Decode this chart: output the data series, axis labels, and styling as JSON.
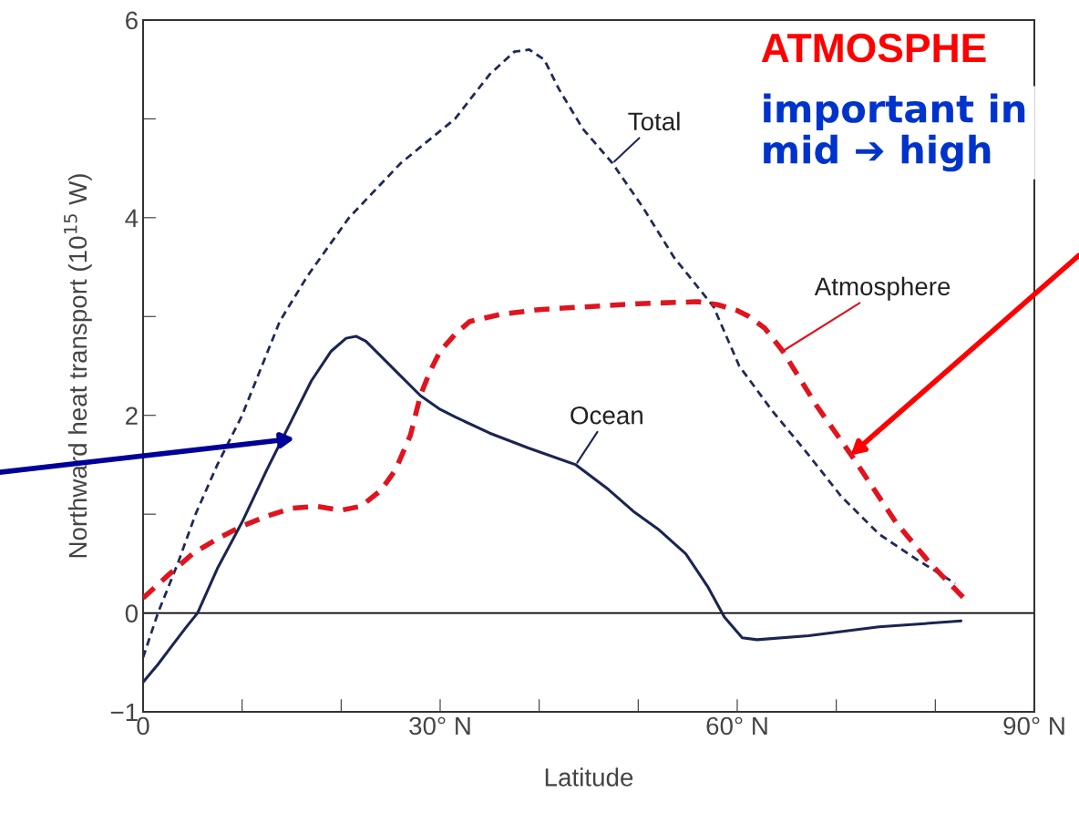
{
  "chart_data": {
    "type": "line",
    "xlabel": "Latitude",
    "ylabel": "Northward heat transport (10$^{15}$ W)",
    "xlim": [
      0,
      90
    ],
    "xticks": [
      0,
      {
        "value": 10,
        "label": null
      },
      {
        "value": 20,
        "label": null
      },
      {
        "value": 30,
        "label": "30° N"
      },
      {
        "value": 40,
        "label": null
      },
      {
        "value": 50,
        "label": null
      },
      {
        "value": 60,
        "label": "60° N"
      },
      {
        "value": 70,
        "label": null
      },
      {
        "value": 80,
        "label": null
      },
      {
        "value": 90,
        "label": "90° N"
      }
    ],
    "ylim": [
      -1,
      6
    ],
    "yticks": [
      {
        "value": -1,
        "label": "−1"
      },
      0,
      {
        "value": 1,
        "label": null
      },
      2,
      {
        "value": 3,
        "label": null
      },
      4,
      {
        "value": 5,
        "label": null
      },
      6
    ],
    "grid": false,
    "legend": false,
    "marker": "none",
    "series": [
      {
        "name": "Total",
        "color": "#1f2a55",
        "line_style": "dashed",
        "x": [
          0,
          1.5,
          3.5,
          5.3,
          7.5,
          10,
          12,
          13.8,
          16.6,
          20.8,
          26,
          31.5,
          35,
          37.5,
          39,
          40.5,
          42,
          44.4,
          47.4,
          50.5,
          53.6,
          57.6,
          60.2,
          63.5,
          67.2,
          70.5,
          74.3,
          78,
          82
        ],
        "values": [
          -0.45,
          0,
          0.5,
          1,
          1.5,
          2,
          2.5,
          2.95,
          3.41,
          4,
          4.55,
          5,
          5.45,
          5.68,
          5.7,
          5.6,
          5.3,
          4.9,
          4.55,
          4.1,
          3.6,
          3.1,
          2.5,
          2.05,
          1.6,
          1.18,
          0.8,
          0.55,
          0.3
        ]
      },
      {
        "name": "Atmosphere",
        "color": "#e0141e",
        "line_style": "dashed",
        "x": [
          0,
          2.5,
          5,
          7.5,
          10,
          12.5,
          15,
          17.5,
          20,
          22,
          24,
          25.5,
          27,
          28,
          29,
          30,
          31.5,
          33,
          36,
          40,
          45,
          50,
          56,
          58,
          60,
          61.2,
          62.8,
          64.6,
          68,
          71.5,
          73.5,
          76,
          79.5,
          82.8
        ],
        "values": [
          0.15,
          0.38,
          0.6,
          0.75,
          0.88,
          0.98,
          1.06,
          1.08,
          1.04,
          1.08,
          1.24,
          1.45,
          1.8,
          2.2,
          2.45,
          2.65,
          2.82,
          2.95,
          3.02,
          3.07,
          3.1,
          3.13,
          3.15,
          3.12,
          3.06,
          3.0,
          2.88,
          2.65,
          2.1,
          1.6,
          1.3,
          0.92,
          0.5,
          0.16
        ]
      },
      {
        "name": "Ocean",
        "color": "#1a2552",
        "line_style": "solid",
        "x": [
          0,
          1.5,
          3,
          4.3,
          5.5,
          7.5,
          10,
          12.5,
          15,
          17,
          19,
          20.5,
          21.5,
          22.5,
          24,
          26,
          28,
          30,
          31.6,
          35,
          38.9,
          43.7,
          47,
          49.5,
          52,
          54.8,
          57,
          58.7,
          60.5,
          62,
          67.2,
          74.3,
          82.6
        ],
        "values": [
          -0.7,
          -0.52,
          -0.32,
          -0.15,
          0,
          0.45,
          0.92,
          1.45,
          1.95,
          2.35,
          2.65,
          2.78,
          2.8,
          2.75,
          2.6,
          2.4,
          2.2,
          2.06,
          1.98,
          1.82,
          1.67,
          1.5,
          1.25,
          1.03,
          0.85,
          0.6,
          0.27,
          -0.04,
          -0.25,
          -0.27,
          -0.23,
          -0.14,
          -0.08
        ]
      }
    ],
    "ref_lines": [
      {
        "axis": "y",
        "value": 0,
        "color": "#000000",
        "line_style": "solid"
      }
    ],
    "annotations": [
      "ATMOSPHE",
      "important in\nmid ➔ high"
    ]
  }
}
